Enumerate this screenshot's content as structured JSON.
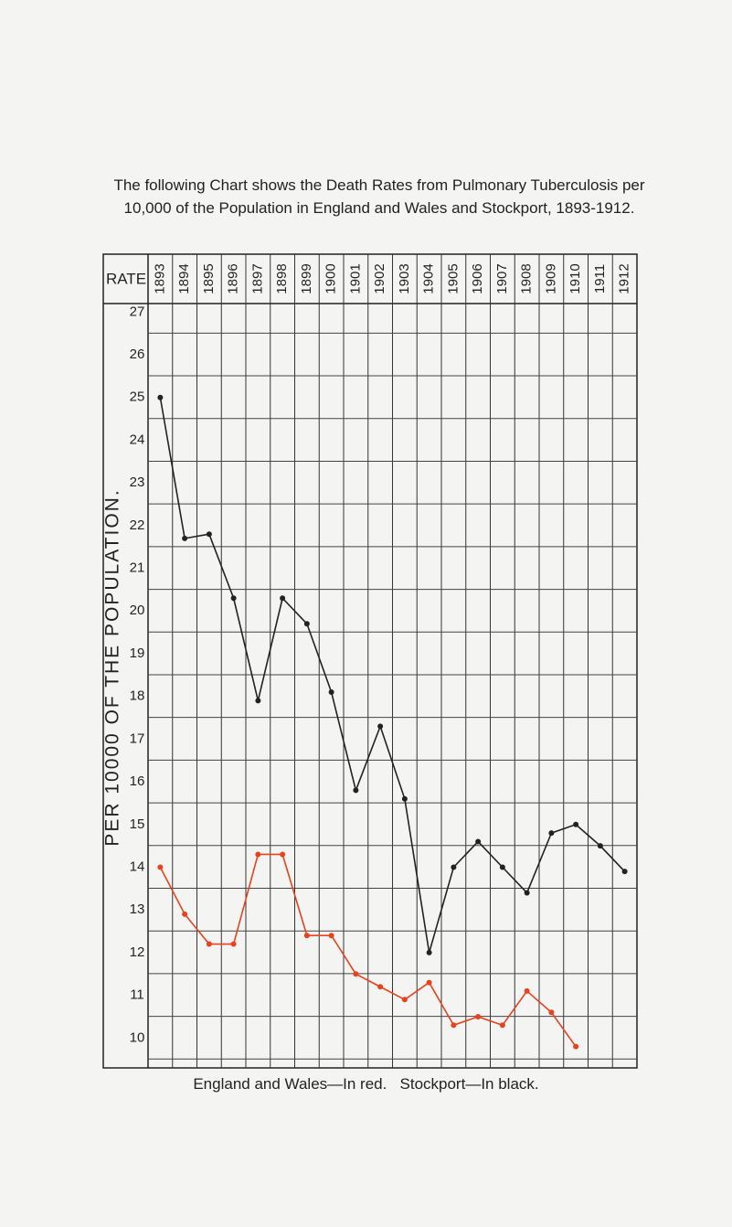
{
  "chart_data": {
    "type": "line",
    "title": "The following Chart shows the Death Rates from Pulmonary Tuberculosis per 10,000 of the Population in England and Wales and Stockport, 1893-1912.",
    "corner_label": "RATE",
    "y_label": "PER 10000 OF THE POPULATION.",
    "note": "England and Wales—In red.   Stockport—In black.",
    "categories": [
      "1893",
      "1894",
      "1895",
      "1896",
      "1897",
      "1898",
      "1899",
      "1900",
      "1901",
      "1902",
      "1903",
      "1904",
      "1905",
      "1906",
      "1907",
      "1908",
      "1909",
      "1910",
      "1911",
      "1912"
    ],
    "series": [
      {
        "color": "#e8421f",
        "values": [
          14.0,
          12.9,
          12.2,
          12.2,
          14.3,
          14.3,
          12.4,
          12.4,
          11.5,
          11.2,
          10.9,
          11.3,
          10.3,
          10.5,
          10.3,
          11.1,
          10.6,
          9.8,
          null,
          null
        ]
      },
      {
        "color": "#222222",
        "values": [
          25.0,
          21.7,
          21.8,
          20.3,
          17.9,
          20.3,
          19.7,
          18.1,
          15.8,
          17.3,
          15.6,
          12.0,
          14.0,
          14.6,
          14.0,
          13.4,
          14.8,
          15.0,
          14.5,
          13.9
        ]
      }
    ],
    "ylim": [
      9.3,
      27.2
    ],
    "yticks": [
      10,
      11,
      12,
      13,
      14,
      15,
      16,
      17,
      18,
      19,
      20,
      21,
      22,
      23,
      24,
      25,
      26,
      27
    ],
    "grid": true
  }
}
